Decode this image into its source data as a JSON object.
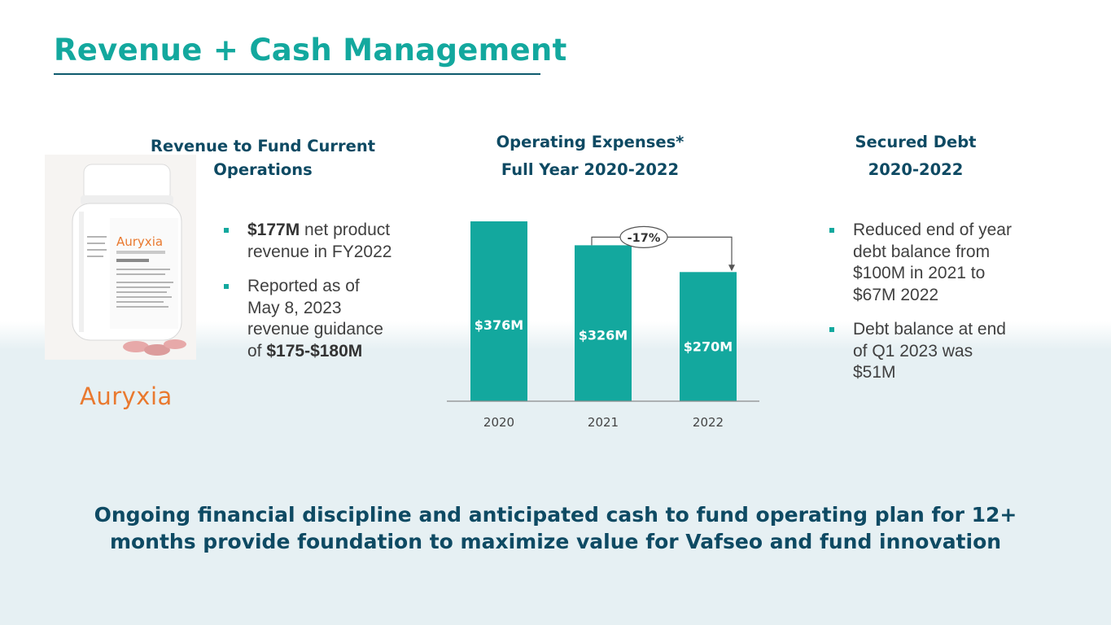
{
  "slide": {
    "title": "Revenue + Cash Management",
    "footer_line1": "Ongoing financial discipline and anticipated cash to fund operating plan for 12+",
    "footer_line2": "months provide foundation to maximize value for Vafseo and fund innovation"
  },
  "left": {
    "heading_line1": "Revenue to Fund Current",
    "heading_line2": "Operations",
    "brand": "Auryxia",
    "bullet1": {
      "bold": "$177M",
      "text": " net product revenue in FY2022"
    },
    "bullet2": {
      "text": "Reported as of May 8, 2023 revenue guidance of ",
      "bold": "$175-$180M"
    }
  },
  "right": {
    "heading_line1": "Secured Debt",
    "heading_line2": "2020-2022",
    "bullet1": "Reduced end of year debt balance from $100M in 2021 to $67M 2022",
    "bullet2": "Debt balance at end of Q1 2023 was $51M"
  },
  "colors": {
    "teal": "#13a89e",
    "navy": "#0e4a63",
    "orange": "#e9792f"
  },
  "chart_data": {
    "type": "bar",
    "title": "Operating Expenses*",
    "subtitle": "Full Year 2020-2022",
    "categories": [
      "2020",
      "2021",
      "2022"
    ],
    "values": [
      376,
      326,
      270
    ],
    "data_labels": [
      "$376M",
      "$326M",
      "$270M"
    ],
    "annotation": "-17%",
    "ylim": [
      0,
      376
    ],
    "grid": false,
    "color": "#13a89e"
  }
}
